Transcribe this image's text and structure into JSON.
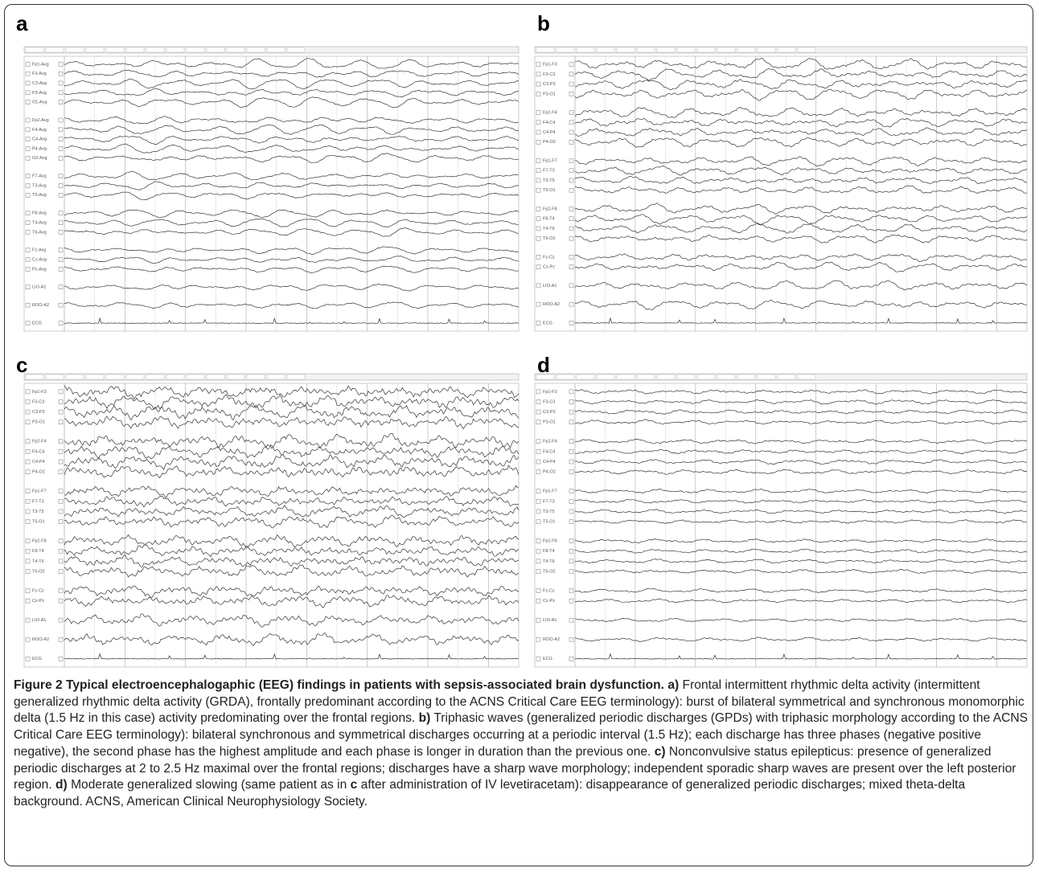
{
  "panels": [
    {
      "letter": "a",
      "channel_groups": [
        [
          "Fp1-Avg",
          "F3-Avg",
          "C3-Avg",
          "P3-Avg",
          "O1-Avg"
        ],
        [
          "Fp2-Avg",
          "F4-Avg",
          "C4-Avg",
          "P4-Avg",
          "O2-Avg"
        ],
        [
          "F7-Avg",
          "T3-Avg",
          "T5-Avg"
        ],
        [
          "F8-Avg",
          "T4-Avg",
          "T6-Avg"
        ],
        [
          "Fz-Avg",
          "Cz-Avg",
          "Pz-Avg"
        ],
        [
          "LIO-A1"
        ],
        [
          "ROO-A2"
        ],
        [
          "ECG"
        ]
      ]
    },
    {
      "letter": "b",
      "channel_groups": [
        [
          "Fp1-F3",
          "F3-C3",
          "C3-P3",
          "P3-O1"
        ],
        [
          "Fp2-F4",
          "F4-C4",
          "C4-P4",
          "P4-O2"
        ],
        [
          "Fp1-F7",
          "F7-T3",
          "T3-T5",
          "T5-O1"
        ],
        [
          "Fp2-F8",
          "F8-T4",
          "T4-T6",
          "T6-O2"
        ],
        [
          "Fz-Cz",
          "Cz-Pz"
        ],
        [
          "LIO-A1"
        ],
        [
          "ROO-A2"
        ],
        [
          "ECG"
        ]
      ]
    },
    {
      "letter": "c",
      "channel_groups": [
        [
          "Fp1-F3",
          "F3-C3",
          "C3-P3",
          "P3-O1"
        ],
        [
          "Fp2-F4",
          "F4-C4",
          "C4-P4",
          "P4-O2"
        ],
        [
          "Fp1-F7",
          "F7-T3",
          "T3-T5",
          "T5-O1"
        ],
        [
          "Fp2-F8",
          "F8-T4",
          "T4-T6",
          "T6-O2"
        ],
        [
          "Fz-Cz",
          "Cz-Pz"
        ],
        [
          "LIO-A1"
        ],
        [
          "ROO-A2"
        ],
        [
          "ECG"
        ]
      ]
    },
    {
      "letter": "d",
      "channel_groups": [
        [
          "Fp1-F3",
          "F3-C3",
          "C3-P3",
          "P3-O1"
        ],
        [
          "Fp2-F4",
          "F4-C4",
          "C4-P4",
          "P4-O2"
        ],
        [
          "Fp1-F7",
          "F7-T3",
          "T3-T5",
          "T5-O1"
        ],
        [
          "Fp2-F8",
          "F8-T4",
          "T4-T6",
          "T6-O2"
        ],
        [
          "Fz-Cz",
          "Cz-Pz"
        ],
        [
          "LIO-A1"
        ],
        [
          "ROO-A2"
        ],
        [
          "ECG"
        ]
      ]
    }
  ],
  "caption": [
    {
      "text": "Figure 2 Typical electroencephalogaphic (EEG) findings in patients with sepsis-associated brain dysfunction. a)",
      "bold": true
    },
    {
      "text": " Frontal intermittent rhythmic delta activity (intermittent generalized rhythmic delta activity (GRDA), frontally predominant according to the ACNS Critical Care EEG terminology): burst of bilateral symmetrical and synchronous monomorphic delta (1.5 Hz in this case) activity predominating over the frontal regions. ",
      "bold": false
    },
    {
      "text": "b)",
      "bold": true
    },
    {
      "text": " Triphasic waves (generalized periodic discharges (GPDs) with triphasic morphology according to the ACNS Critical Care EEG terminology): bilateral synchronous and symmetrical discharges occurring at a periodic interval (1.5 Hz); each discharge has three phases (negative positive negative), the second phase has the highest amplitude and each phase is longer in duration than the previous one. ",
      "bold": false
    },
    {
      "text": "c)",
      "bold": true
    },
    {
      "text": " Nonconvulsive status epilepticus: presence of generalized periodic discharges at 2 to 2.5 Hz maximal over the frontal regions; discharges have a sharp wave morphology; independent sporadic sharp waves are present over the left posterior region. ",
      "bold": false
    },
    {
      "text": "d)",
      "bold": true
    },
    {
      "text": " Moderate generalized slowing (same patient as in ",
      "bold": false
    },
    {
      "text": "c",
      "bold": true
    },
    {
      "text": " after administration of IV levetiracetam): disappearance of generalized periodic discharges; mixed theta-delta background. ACNS, American Clinical Neurophysiology Society.",
      "bold": false
    }
  ]
}
